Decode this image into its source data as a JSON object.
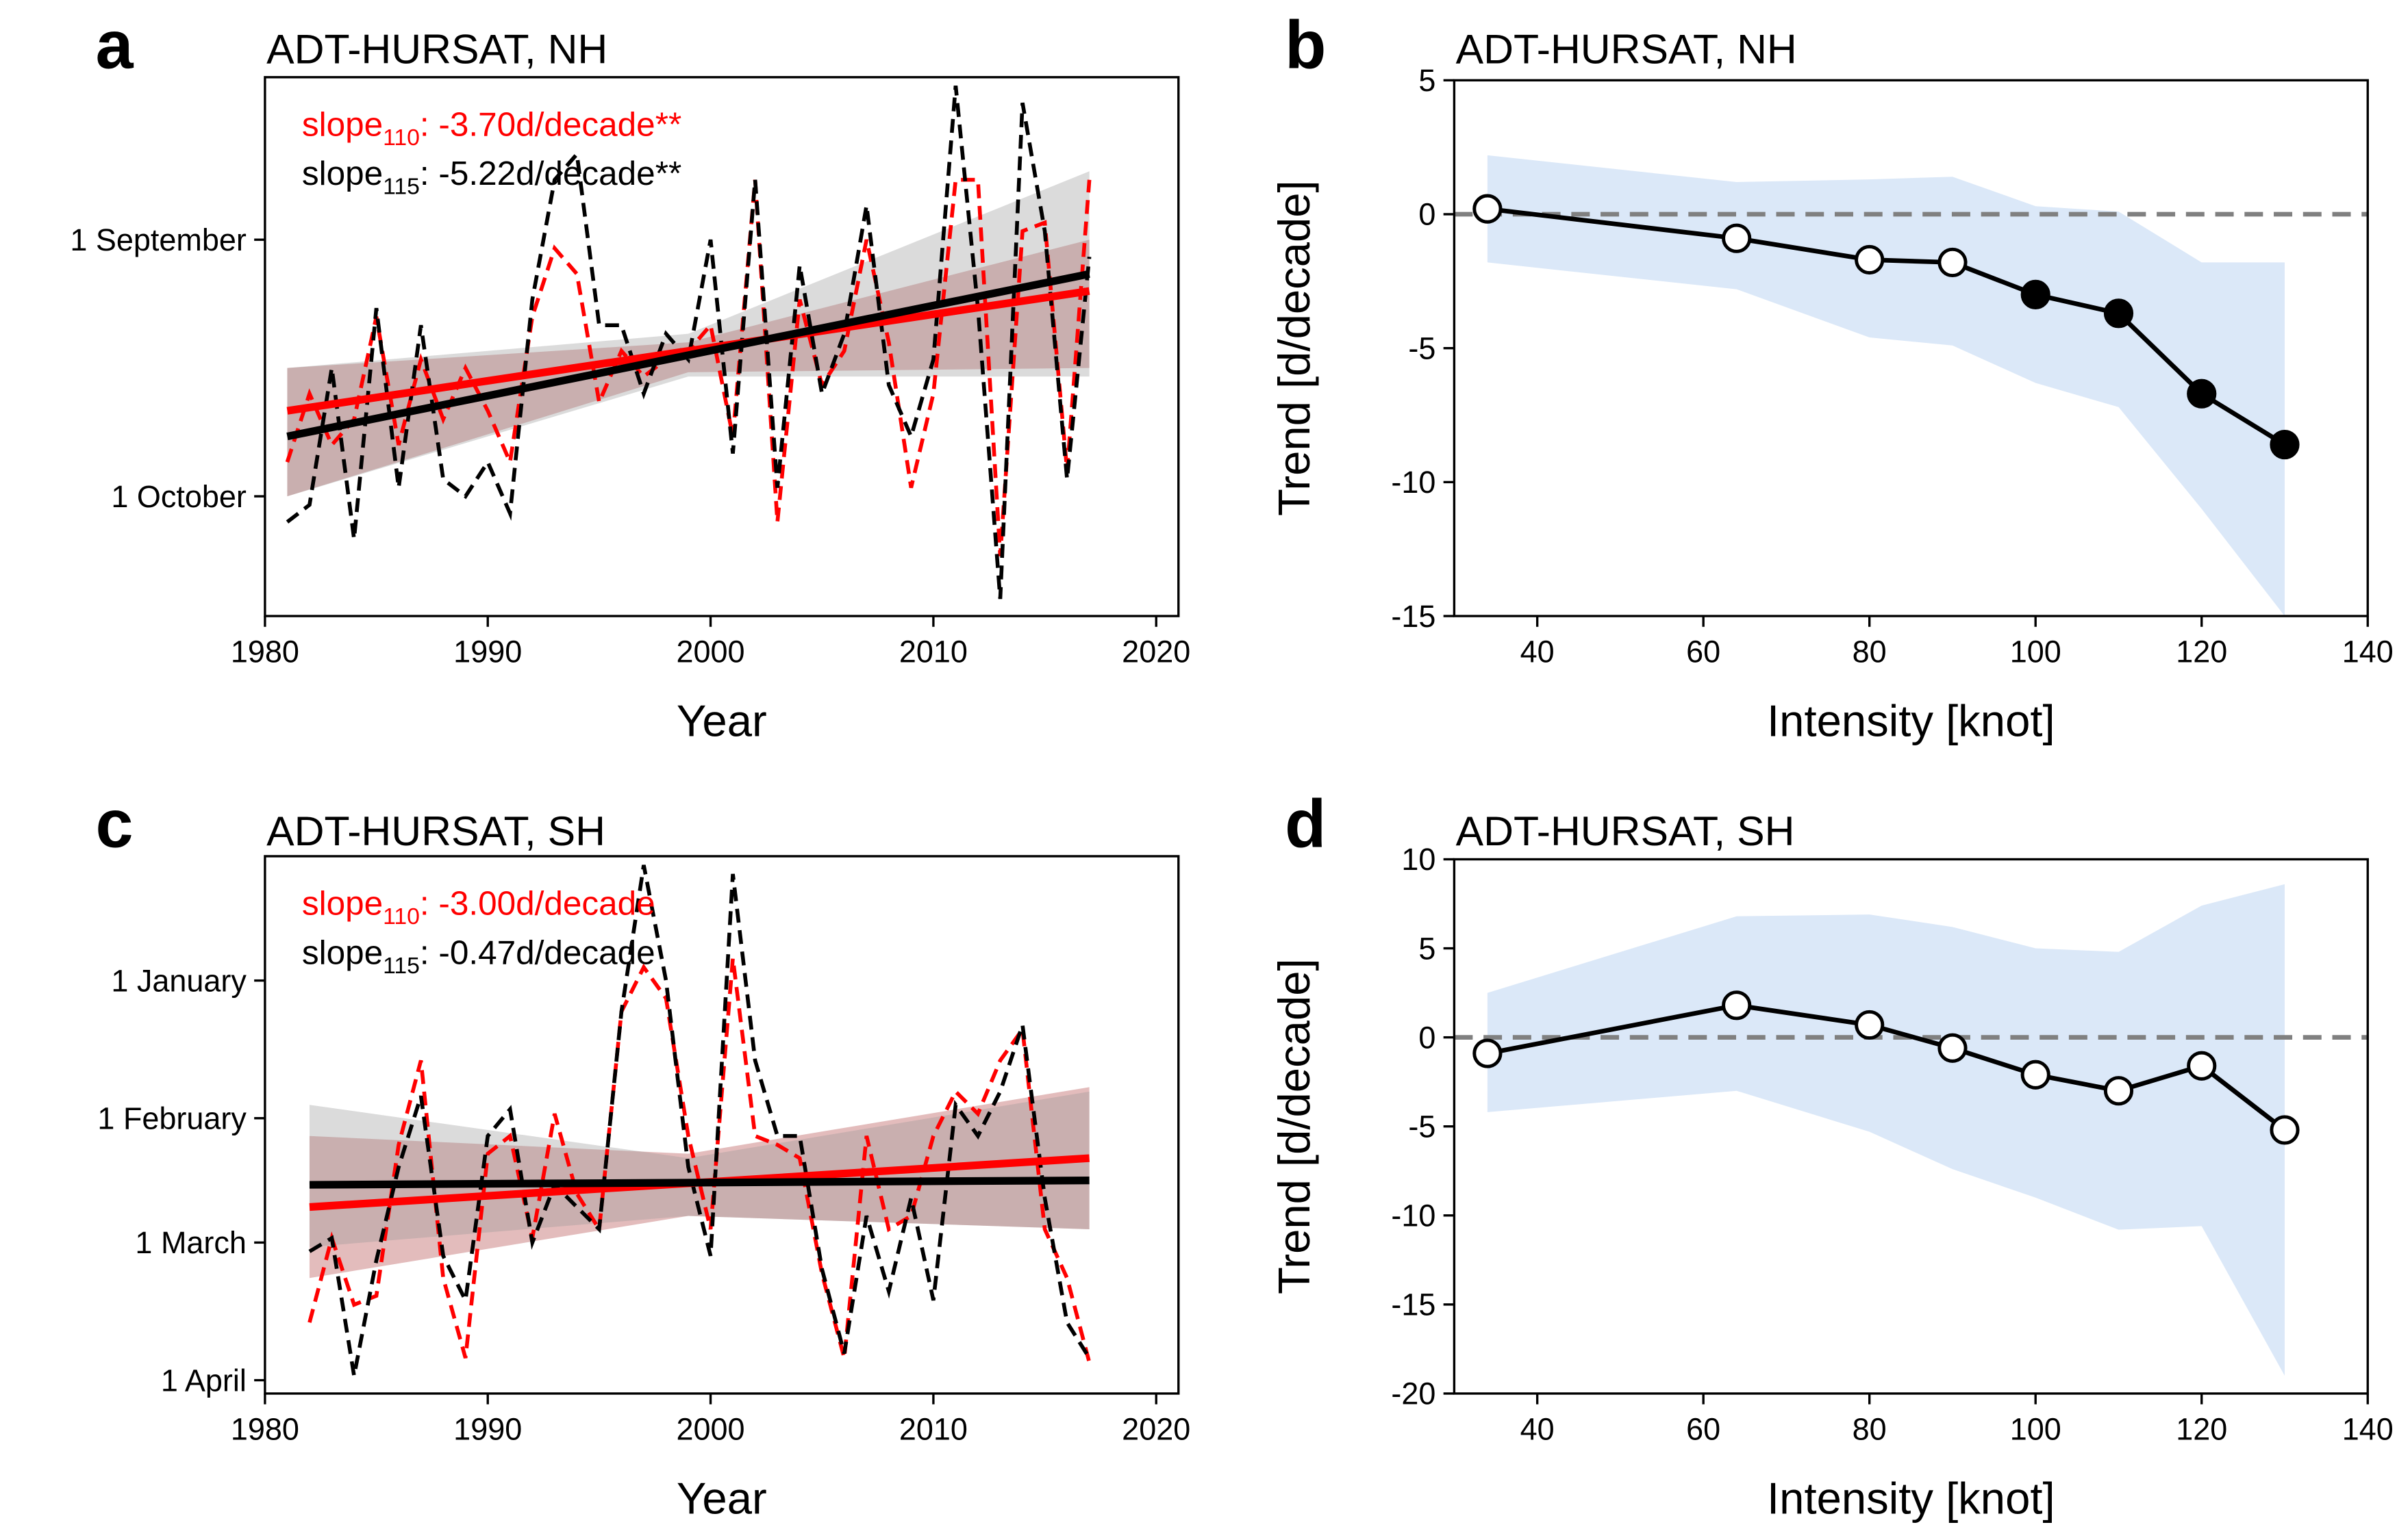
{
  "chart_data": [
    {
      "type": "line",
      "panel": "a",
      "title": "ADT-HURSAT, NH",
      "xlabel": "Year",
      "x": [
        1981,
        1982,
        1983,
        1984,
        1985,
        1986,
        1987,
        1988,
        1989,
        1990,
        1991,
        1992,
        1993,
        1994,
        1995,
        1996,
        1997,
        1998,
        1999,
        2000,
        2001,
        2002,
        2003,
        2004,
        2005,
        2006,
        2007,
        2008,
        2009,
        2010,
        2011,
        2012,
        2013,
        2014,
        2015,
        2016,
        2017
      ],
      "series": [
        {
          "color": "#ff0000",
          "band_color": "#b04040",
          "values": [
            270,
            262,
            268,
            265,
            253,
            268,
            258,
            265,
            259,
            264,
            270,
            253,
            245,
            248,
            263,
            257,
            260,
            258,
            257,
            254,
            267,
            237,
            277,
            251,
            261,
            257,
            244,
            256,
            273,
            262,
            237,
            237,
            281,
            243,
            242,
            271,
            237
          ],
          "fit_x": [
            1981,
            2017
          ],
          "fit": [
            264,
            250
          ],
          "band_x": [
            1981,
            1999,
            2017
          ],
          "band_lower": [
            274,
            259.5,
            259
          ],
          "band_upper": [
            259,
            256,
            244
          ]
        },
        {
          "color": "#000000",
          "band_color": "#999999",
          "values": [
            277,
            275,
            259,
            279,
            252,
            273,
            254,
            272,
            274,
            270,
            276,
            251,
            237,
            234,
            254,
            254,
            262,
            255,
            258,
            244,
            269,
            237,
            273,
            247,
            262,
            255,
            240,
            261,
            267,
            258,
            226,
            252,
            286,
            228,
            243,
            272,
            246
          ],
          "fit_x": [
            1981,
            2017
          ],
          "fit": [
            267,
            248
          ],
          "band_x": [
            1981,
            1999,
            2017
          ],
          "band_lower": [
            274,
            260,
            260
          ],
          "band_upper": [
            259,
            255,
            236
          ]
        }
      ],
      "annotations": [
        {
          "text": "slope",
          "sub": "110",
          "rest": ": -3.70d/decade**",
          "color": "#ff0000"
        },
        {
          "text": "slope",
          "sub": "115",
          "rest": ": -5.22d/decade**",
          "color": "#000000"
        }
      ],
      "xlim": [
        1980,
        2021
      ],
      "xticks": [
        1980,
        1990,
        2000,
        2010,
        2020
      ],
      "ylim": [
        288,
        225
      ],
      "yticks": [
        {
          "value": 244,
          "label": "1 September"
        },
        {
          "value": 274,
          "label": "1 October"
        }
      ]
    },
    {
      "type": "line",
      "panel": "b",
      "title": "ADT-HURSAT, NH",
      "xlabel": "Intensity [knot]",
      "ylabel": "Trend [d/decade]",
      "x": [
        34,
        64,
        80,
        90,
        100,
        110,
        120,
        130
      ],
      "series": [
        {
          "color": "#000000",
          "values": [
            0.2,
            -0.9,
            -1.7,
            -1.8,
            -3.0,
            -3.7,
            -6.7,
            -8.6
          ],
          "filled": [
            false,
            false,
            false,
            false,
            true,
            true,
            true,
            true
          ]
        }
      ],
      "band": {
        "color": "#dbe8f8",
        "lower": [
          -1.8,
          -2.8,
          -4.6,
          -4.9,
          -6.3,
          -7.2,
          -11,
          -15
        ],
        "upper": [
          2.2,
          1.2,
          1.3,
          1.4,
          0.3,
          0.1,
          -1.8,
          -1.8
        ]
      },
      "reference_line": 0,
      "xlim": [
        30,
        140
      ],
      "xticks": [
        40,
        60,
        80,
        100,
        120,
        140
      ],
      "ylim": [
        -15,
        5
      ],
      "yticks": [
        -15,
        -10,
        -5,
        0,
        5
      ]
    },
    {
      "type": "line",
      "panel": "c",
      "title": "ADT-HURSAT, SH",
      "xlabel": "Year",
      "x": [
        1982,
        1983,
        1984,
        1985,
        1986,
        1987,
        1988,
        1989,
        1990,
        1991,
        1992,
        1993,
        1994,
        1995,
        1996,
        1997,
        1998,
        1999,
        2000,
        2001,
        2002,
        2003,
        2004,
        2005,
        2006,
        2007,
        2008,
        2009,
        2010,
        2011,
        2012,
        2013,
        2014,
        2015,
        2016,
        2017
      ],
      "series": [
        {
          "color": "#ff0000",
          "band_color": "#b04040",
          "values": [
            77,
            58,
            73,
            71,
            37,
            18,
            67,
            85,
            39,
            35,
            58,
            30,
            48,
            56,
            7,
            -3,
            4,
            35,
            56,
            -5,
            35,
            37,
            40,
            66,
            85,
            35,
            56,
            53,
            35,
            25,
            30,
            18,
            11,
            56,
            67,
            86
          ],
          "fit_x": [
            1982,
            2017
          ],
          "fit": [
            51,
            40
          ],
          "band_x": [
            1982,
            1999,
            2017
          ],
          "band_lower": [
            67,
            53,
            56
          ],
          "band_upper": [
            35,
            39,
            24
          ]
        },
        {
          "color": "#000000",
          "band_color": "#999999",
          "values": [
            61,
            58,
            89,
            63,
            42,
            26,
            62,
            72,
            35,
            29,
            59,
            46,
            51,
            56,
            7,
            -26,
            0,
            42,
            62,
            -24,
            18,
            35,
            35,
            65,
            84,
            53,
            70,
            49,
            72,
            28,
            35,
            25,
            10,
            49,
            77,
            85
          ],
          "fit_x": [
            1982,
            2017
          ],
          "fit": [
            46,
            45
          ],
          "band_x": [
            1982,
            1999,
            2017
          ],
          "band_lower": [
            60,
            53,
            56
          ],
          "band_upper": [
            28,
            40,
            25
          ]
        }
      ],
      "annotations": [
        {
          "text": "slope",
          "sub": "110",
          "rest": ": -3.00d/decade",
          "color": "#ff0000"
        },
        {
          "text": "slope",
          "sub": "115",
          "rest": ": -0.47d/decade",
          "color": "#000000"
        }
      ],
      "xlim": [
        1980,
        2021
      ],
      "xticks": [
        1980,
        1990,
        2000,
        2010,
        2020
      ],
      "ylim": [
        93,
        -28
      ],
      "yticks": [
        {
          "value": 0,
          "label": "1 January"
        },
        {
          "value": 31,
          "label": "1 February"
        },
        {
          "value": 59,
          "label": "1 March"
        },
        {
          "value": 90,
          "label": "1 April"
        }
      ]
    },
    {
      "type": "line",
      "panel": "d",
      "title": "ADT-HURSAT, SH",
      "xlabel": "Intensity [knot]",
      "ylabel": "Trend [d/decade]",
      "x": [
        34,
        64,
        80,
        90,
        100,
        110,
        120,
        130
      ],
      "series": [
        {
          "color": "#000000",
          "values": [
            -0.9,
            1.8,
            0.7,
            -0.6,
            -2.1,
            -3.0,
            -1.6,
            -5.2
          ],
          "filled": [
            false,
            false,
            false,
            false,
            false,
            false,
            false,
            false
          ]
        }
      ],
      "band": {
        "color": "#dbe8f8",
        "lower": [
          -4.2,
          -3.0,
          -5.3,
          -7.4,
          -9.0,
          -10.8,
          -10.6,
          -19.0
        ],
        "upper": [
          2.5,
          6.8,
          6.9,
          6.2,
          5.0,
          4.8,
          7.4,
          8.6
        ]
      },
      "reference_line": 0,
      "xlim": [
        30,
        140
      ],
      "xticks": [
        40,
        60,
        80,
        100,
        120,
        140
      ],
      "ylim": [
        -20,
        10
      ],
      "yticks": [
        -20,
        -15,
        -10,
        -5,
        0,
        5,
        10
      ]
    }
  ]
}
